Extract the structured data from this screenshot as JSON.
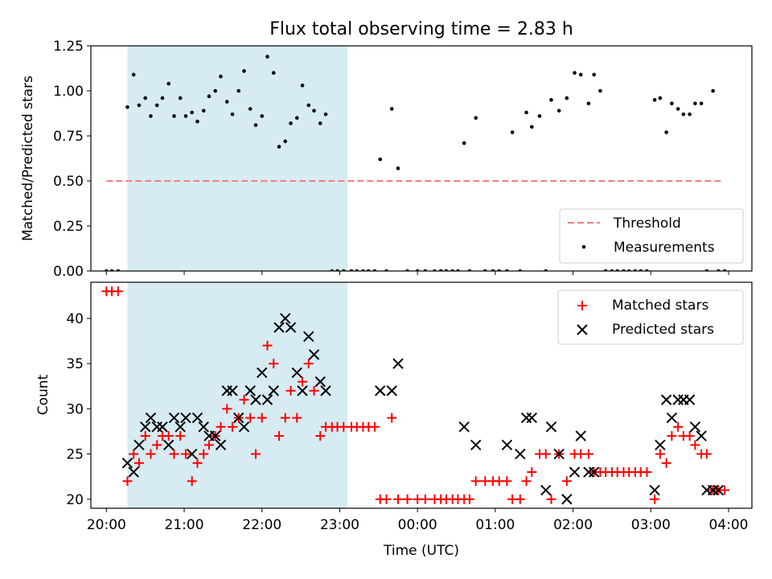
{
  "title": "Flux total observing time = 2.83 h",
  "chart_data": [
    {
      "type": "scatter",
      "ylabel": "Matched/Predicted stars",
      "xlim": [
        -0.2,
        8.3
      ],
      "ylim": [
        0,
        1.25
      ],
      "yticks": [
        0.0,
        0.25,
        0.5,
        0.75,
        1.0,
        1.25
      ],
      "ytick_labels": [
        "0.00",
        "0.25",
        "0.50",
        "0.75",
        "1.00",
        "1.25"
      ],
      "shaded_span": [
        0.27,
        3.1
      ],
      "legend": {
        "placement": "lower-right",
        "threshold_label": "Threshold",
        "measurements_label": "Measurements"
      },
      "threshold": {
        "value": 0.5,
        "x_range": [
          0.0,
          7.92
        ],
        "color": "#f08080"
      },
      "series": [
        {
          "name": "Measurements",
          "color": "#000000",
          "x": [
            0.0,
            0.07,
            0.15,
            0.27,
            0.35,
            0.42,
            0.5,
            0.57,
            0.65,
            0.72,
            0.8,
            0.87,
            0.95,
            1.02,
            1.1,
            1.17,
            1.25,
            1.32,
            1.4,
            1.47,
            1.55,
            1.62,
            1.7,
            1.77,
            1.85,
            1.92,
            2.0,
            2.07,
            2.15,
            2.22,
            2.3,
            2.37,
            2.45,
            2.52,
            2.6,
            2.67,
            2.75,
            2.82,
            2.9,
            2.97,
            3.05,
            3.15,
            3.22,
            3.3,
            3.37,
            3.45,
            3.52,
            3.6,
            3.67,
            3.75,
            3.87,
            4.0,
            4.1,
            4.22,
            4.3,
            4.37,
            4.45,
            4.52,
            4.6,
            4.67,
            4.75,
            4.87,
            4.97,
            5.05,
            5.15,
            5.22,
            5.32,
            5.4,
            5.47,
            5.57,
            5.65,
            5.72,
            5.82,
            5.92,
            6.02,
            6.1,
            6.2,
            6.27,
            6.35,
            6.42,
            6.5,
            6.57,
            6.65,
            6.72,
            6.8,
            6.87,
            6.95,
            7.05,
            7.12,
            7.2,
            7.27,
            7.35,
            7.42,
            7.5,
            7.57,
            7.65,
            7.72,
            7.8,
            7.87,
            7.95
          ],
          "y": [
            0.0,
            0.0,
            0.0,
            0.91,
            1.09,
            0.92,
            0.96,
            0.86,
            0.92,
            0.96,
            1.04,
            0.86,
            0.96,
            0.86,
            0.88,
            0.83,
            0.89,
            0.97,
            1.0,
            1.08,
            0.94,
            0.87,
            1.0,
            1.11,
            0.9,
            0.81,
            0.86,
            1.19,
            1.1,
            0.69,
            0.72,
            0.82,
            0.85,
            1.03,
            0.92,
            0.89,
            0.82,
            0.87,
            0.0,
            0.0,
            0.0,
            0.0,
            0.0,
            0.0,
            0.0,
            0.0,
            0.62,
            0.0,
            0.9,
            0.57,
            0.0,
            0.0,
            0.0,
            0.0,
            0.0,
            0.0,
            0.0,
            0.0,
            0.71,
            0.0,
            0.85,
            0.0,
            0.0,
            0.0,
            0.0,
            0.77,
            0.0,
            0.88,
            0.8,
            0.86,
            0.0,
            0.95,
            0.89,
            0.96,
            1.1,
            1.09,
            0.93,
            1.09,
            1.0,
            0.0,
            0.0,
            0.0,
            0.0,
            0.0,
            0.0,
            0.0,
            0.0,
            0.95,
            0.96,
            0.77,
            0.93,
            0.9,
            0.87,
            0.87,
            0.93,
            0.93,
            0.0,
            1.0,
            0.0,
            0.0
          ]
        }
      ]
    },
    {
      "type": "scatter",
      "xlabel": "Time (UTC)",
      "ylabel": "Count",
      "xlim": [
        -0.2,
        8.3
      ],
      "ylim": [
        19,
        44
      ],
      "xticks": [
        0,
        1,
        2,
        3,
        4,
        5,
        6,
        7,
        8
      ],
      "xtick_labels": [
        "20:00",
        "21:00",
        "22:00",
        "23:00",
        "00:00",
        "01:00",
        "02:00",
        "03:00",
        "04:00"
      ],
      "yticks": [
        20,
        25,
        30,
        35,
        40
      ],
      "ytick_labels": [
        "20",
        "25",
        "30",
        "35",
        "40"
      ],
      "shaded_span": [
        0.27,
        3.1
      ],
      "legend": {
        "placement": "upper-right"
      },
      "series": [
        {
          "name": "Matched stars",
          "marker": "+",
          "color": "#ff0000",
          "x": [
            0.0,
            0.07,
            0.15,
            0.27,
            0.35,
            0.42,
            0.5,
            0.57,
            0.65,
            0.72,
            0.8,
            0.87,
            0.95,
            1.02,
            1.1,
            1.17,
            1.25,
            1.32,
            1.4,
            1.47,
            1.55,
            1.62,
            1.7,
            1.77,
            1.85,
            1.92,
            2.0,
            2.07,
            2.15,
            2.22,
            2.3,
            2.37,
            2.45,
            2.52,
            2.6,
            2.67,
            2.75,
            2.82,
            2.9,
            2.97,
            3.05,
            3.15,
            3.22,
            3.3,
            3.37,
            3.45,
            3.52,
            3.6,
            3.67,
            3.75,
            3.87,
            4.0,
            4.1,
            4.22,
            4.3,
            4.37,
            4.45,
            4.52,
            4.6,
            4.67,
            4.75,
            4.87,
            4.97,
            5.05,
            5.15,
            5.22,
            5.32,
            5.4,
            5.47,
            5.57,
            5.65,
            5.72,
            5.82,
            5.92,
            6.02,
            6.1,
            6.2,
            6.27,
            6.35,
            6.42,
            6.5,
            6.57,
            6.65,
            6.72,
            6.8,
            6.87,
            6.95,
            7.05,
            7.12,
            7.2,
            7.27,
            7.35,
            7.42,
            7.5,
            7.57,
            7.65,
            7.72,
            7.8,
            7.87,
            7.95
          ],
          "y": [
            43,
            43,
            43,
            22,
            25,
            24,
            27,
            25,
            26,
            27,
            27,
            25,
            27,
            25,
            22,
            24,
            25,
            26,
            27,
            28,
            30,
            28,
            29,
            31,
            29,
            25,
            29,
            37,
            35,
            27,
            29,
            32,
            29,
            33,
            35,
            32,
            27,
            28,
            28,
            28,
            28,
            28,
            28,
            28,
            28,
            28,
            20,
            20,
            29,
            20,
            20,
            20,
            20,
            20,
            20,
            20,
            20,
            20,
            20,
            20,
            22,
            22,
            22,
            22,
            22,
            20,
            20,
            22,
            23,
            25,
            25,
            20,
            25,
            22,
            25,
            25,
            25,
            23,
            23,
            23,
            23,
            23,
            23,
            23,
            23,
            23,
            23,
            20,
            25,
            24,
            27,
            28,
            27,
            27,
            26,
            25,
            25,
            21,
            21,
            21
          ]
        },
        {
          "name": "Predicted stars",
          "marker": "x",
          "color": "#000000",
          "x": [
            0.27,
            0.35,
            0.42,
            0.5,
            0.57,
            0.65,
            0.72,
            0.8,
            0.87,
            0.95,
            1.02,
            1.1,
            1.17,
            1.25,
            1.32,
            1.4,
            1.47,
            1.55,
            1.62,
            1.7,
            1.77,
            1.85,
            1.92,
            2.0,
            2.07,
            2.15,
            2.22,
            2.3,
            2.37,
            2.45,
            2.52,
            2.6,
            2.67,
            2.75,
            2.82,
            3.52,
            3.67,
            3.75,
            4.6,
            4.75,
            5.15,
            5.32,
            5.4,
            5.47,
            5.65,
            5.72,
            5.82,
            5.92,
            6.02,
            6.1,
            6.2,
            6.27,
            7.05,
            7.12,
            7.2,
            7.27,
            7.35,
            7.42,
            7.5,
            7.57,
            7.65,
            7.72,
            7.8,
            7.87
          ],
          "y": [
            24,
            23,
            26,
            28,
            29,
            28,
            28,
            26,
            29,
            28,
            29,
            25,
            29,
            28,
            27,
            27,
            26,
            32,
            32,
            29,
            28,
            32,
            31,
            34,
            31,
            32,
            39,
            40,
            39,
            34,
            32,
            38,
            36,
            33,
            32,
            32,
            32,
            35,
            28,
            26,
            26,
            25,
            29,
            29,
            21,
            28,
            25,
            20,
            23,
            27,
            23,
            23,
            21,
            26,
            31,
            29,
            31,
            31,
            31,
            28,
            27,
            21,
            21,
            21
          ]
        }
      ]
    }
  ]
}
